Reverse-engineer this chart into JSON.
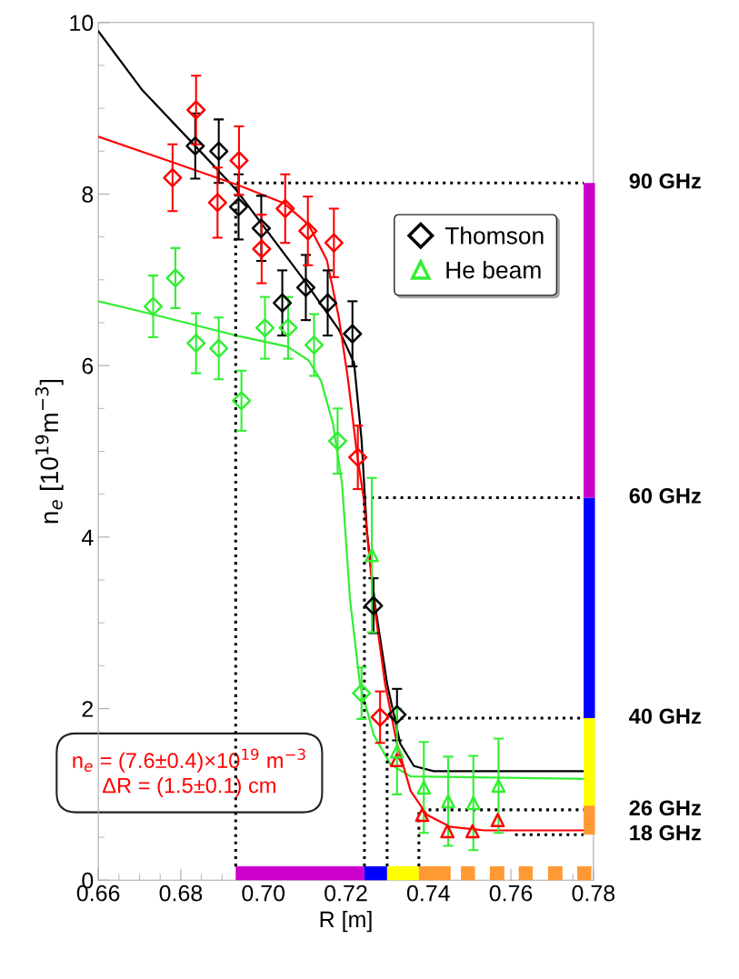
{
  "chart_data": {
    "type": "scatter",
    "xlabel": "R [m]",
    "ylabel": "n$_{e}$ [10$^{19}$m$^{−3}$]",
    "xlim": [
      0.66,
      0.78
    ],
    "ylim": [
      0,
      10
    ],
    "xticks": [
      0.66,
      0.68,
      {
        "value": 0.7,
        "label": "0.70"
      },
      0.72,
      0.74,
      0.76,
      0.78
    ],
    "yticks": [
      0,
      2,
      4,
      6,
      8,
      10
    ],
    "grid": false,
    "legend": "top right",
    "series": [
      {
        "type": "line",
        "color": "#000000",
        "marker": "none",
        "line_style": "solid",
        "x": [
          0.66,
          0.6707,
          0.6835,
          0.6934,
          0.7095,
          0.7183,
          0.722,
          0.7238,
          0.7251,
          0.7271,
          0.73,
          0.7332,
          0.7365,
          0.7413,
          0.7776
        ],
        "values": [
          9.9,
          9.21,
          8.56,
          8.05,
          7.02,
          6.42,
          6.03,
          5.14,
          4.07,
          3.2,
          2.29,
          1.59,
          1.33,
          1.27,
          1.27
        ]
      },
      {
        "type": "line",
        "color": "#33ee33",
        "marker": "none",
        "line_style": "solid",
        "x": [
          0.66,
          0.6729,
          0.6934,
          0.7059,
          0.711,
          0.714,
          0.7169,
          0.7191,
          0.721,
          0.7234,
          0.7267,
          0.7308,
          0.7357,
          0.7776
        ],
        "values": [
          6.75,
          6.6,
          6.35,
          6.22,
          6.06,
          5.82,
          5.32,
          4.61,
          3.28,
          2.29,
          1.7,
          1.35,
          1.21,
          1.18
        ]
      },
      {
        "type": "line",
        "color": "#ff0000",
        "marker": "none",
        "line_style": "solid",
        "x": [
          0.66,
          0.678,
          0.6941,
          0.7051,
          0.711,
          0.7154,
          0.7183,
          0.7205,
          0.7227,
          0.7243,
          0.7267,
          0.7295,
          0.7324,
          0.7357,
          0.7397,
          0.7454,
          0.7536,
          0.7776
        ],
        "values": [
          8.67,
          8.37,
          8.1,
          7.89,
          7.64,
          7.23,
          6.56,
          5.85,
          4.97,
          4.46,
          3.28,
          2.29,
          1.59,
          1.04,
          0.76,
          0.62,
          0.58,
          0.58
        ]
      },
      {
        "type": "line",
        "color": "#000000",
        "marker": "none",
        "line_style": "dotted",
        "x": [
          0.6933,
          0.6933,
          0.7776
        ],
        "values": [
          0.16,
          8.13,
          8.13
        ]
      },
      {
        "type": "line",
        "color": "#000000",
        "marker": "none",
        "line_style": "dotted",
        "x": [
          0.7245,
          0.7245,
          0.7776
        ],
        "values": [
          0.16,
          4.46,
          4.46
        ]
      },
      {
        "type": "line",
        "color": "#000000",
        "marker": "none",
        "line_style": "dotted",
        "x": [
          0.73,
          0.73,
          0.7776
        ],
        "values": [
          0.16,
          1.89,
          1.89
        ]
      },
      {
        "type": "line",
        "color": "#000000",
        "marker": "none",
        "line_style": "dotted",
        "x": [
          0.7377,
          0.7377,
          0.7776
        ],
        "values": [
          0.16,
          0.82,
          0.82
        ]
      },
      {
        "type": "line",
        "color": "#000000",
        "marker": "none",
        "line_style": "dotted",
        "x": [
          0.761,
          0.7776
        ],
        "values": [
          0.53,
          0.53
        ]
      },
      {
        "type": "line",
        "color": "#ff9933",
        "marker": "none",
        "line_style": "solid",
        "x": [
          0.779,
          0.779
        ],
        "values": [
          0.53,
          0.87
        ]
      },
      {
        "type": "line",
        "color": "#ffff00",
        "marker": "none",
        "line_style": "solid",
        "x": [
          0.779,
          0.779
        ],
        "values": [
          0.87,
          1.89
        ]
      },
      {
        "type": "line",
        "color": "#0000ff",
        "marker": "none",
        "line_style": "solid",
        "x": [
          0.779,
          0.779
        ],
        "values": [
          1.89,
          4.46
        ]
      },
      {
        "type": "line",
        "color": "#cc00cc",
        "marker": "none",
        "line_style": "solid",
        "x": [
          0.779,
          0.779
        ],
        "values": [
          4.46,
          8.13
        ]
      },
      {
        "type": "line",
        "color": "#cc00cc",
        "marker": "none",
        "line_style": "solid",
        "x": [
          0.6933,
          0.7245
        ],
        "values": [
          0.08,
          0.08
        ]
      },
      {
        "type": "line",
        "color": "#0000ff",
        "marker": "none",
        "line_style": "solid",
        "x": [
          0.7245,
          0.73
        ],
        "values": [
          0.08,
          0.08
        ]
      },
      {
        "type": "line",
        "color": "#ffff00",
        "marker": "none",
        "line_style": "solid",
        "x": [
          0.73,
          0.7377
        ],
        "values": [
          0.08,
          0.08
        ]
      },
      {
        "type": "line",
        "color": "#ff9933",
        "marker": "none",
        "line_style": "solid",
        "x": [
          0.7377,
          0.7454
        ],
        "values": [
          0.08,
          0.08
        ]
      },
      {
        "type": "line",
        "color": "#ff9933",
        "marker": "none",
        "line_style": "solid",
        "x": [
          0.7479,
          0.7513
        ],
        "values": [
          0.08,
          0.08
        ]
      },
      {
        "type": "line",
        "color": "#ff9933",
        "marker": "none",
        "line_style": "solid",
        "x": [
          0.7549,
          0.7584
        ],
        "values": [
          0.08,
          0.08
        ]
      },
      {
        "type": "line",
        "color": "#ff9933",
        "marker": "none",
        "line_style": "solid",
        "x": [
          0.7619,
          0.7653
        ],
        "values": [
          0.08,
          0.08
        ]
      },
      {
        "type": "line",
        "color": "#ff9933",
        "marker": "none",
        "line_style": "solid",
        "x": [
          0.769,
          0.7725
        ],
        "values": [
          0.08,
          0.08
        ]
      },
      {
        "type": "line",
        "color": "#ff9933",
        "marker": "none",
        "line_style": "solid",
        "x": [
          0.7761,
          0.7795
        ],
        "values": [
          0.08,
          0.08
        ]
      },
      {
        "name": "Thomson",
        "color": "#000000",
        "marker": "diamond",
        "x": [
          0.6835,
          0.6892,
          0.694,
          0.6995,
          0.7046,
          0.7103,
          0.7156,
          0.7216,
          0.7267,
          0.7324
        ],
        "values": [
          8.56,
          8.5,
          7.85,
          7.6,
          6.73,
          6.91,
          6.73,
          6.37,
          3.2,
          1.93
        ],
        "errors": [
          0.38,
          0.37,
          0.38,
          0.38,
          0.38,
          0.38,
          0.38,
          0.38,
          0.32,
          0.3
        ]
      },
      {
        "color": "#33ee33",
        "marker": "diamond",
        "x": [
          0.6733,
          0.6787,
          0.6837,
          0.6892,
          0.6947,
          0.7004,
          0.706,
          0.7123,
          0.718,
          0.7238
        ],
        "values": [
          6.69,
          7.02,
          6.26,
          6.2,
          5.59,
          6.44,
          6.44,
          6.24,
          5.12,
          2.18
        ],
        "errors": [
          0.36,
          0.35,
          0.35,
          0.36,
          0.35,
          0.36,
          0.36,
          0.36,
          0.38,
          0.3
        ]
      },
      {
        "color": "#ff0000",
        "marker": "diamond",
        "x": [
          0.678,
          0.6837,
          0.6889,
          0.6941,
          0.6996,
          0.7053,
          0.7108,
          0.7171,
          0.7229,
          0.7283
        ],
        "values": [
          8.19,
          8.98,
          7.9,
          8.39,
          7.36,
          7.83,
          7.57,
          7.43,
          4.93,
          1.9
        ],
        "errors": [
          0.39,
          0.4,
          0.41,
          0.4,
          0.4,
          0.4,
          0.4,
          0.4,
          0.37,
          0.3
        ]
      },
      {
        "color": "#ff0000",
        "marker": "triangle",
        "x": [
          0.7324,
          0.7385,
          0.7446,
          0.7507,
          0.7568
        ],
        "values": [
          1.4,
          0.76,
          0.57,
          0.57,
          0.7
        ]
      },
      {
        "name": "He beam",
        "color": "#33ee33",
        "marker": "triangle",
        "x": [
          0.7263,
          0.7324,
          0.7389,
          0.7448,
          0.7509,
          0.757
        ],
        "values": [
          3.79,
          1.5,
          1.08,
          0.92,
          0.9,
          1.1
        ],
        "errors": [
          0.9,
          0.5,
          0.53,
          0.52,
          0.55,
          0.55
        ]
      }
    ],
    "annotations": [
      "n$_{e}$ = (7.6±0.4)×10$^{19}$ m$^{−3}$",
      "ΔR = (1.5±0.1) cm",
      "90 GHz",
      "60 GHz",
      "40 GHz",
      "26 GHz",
      "18 GHz"
    ]
  }
}
